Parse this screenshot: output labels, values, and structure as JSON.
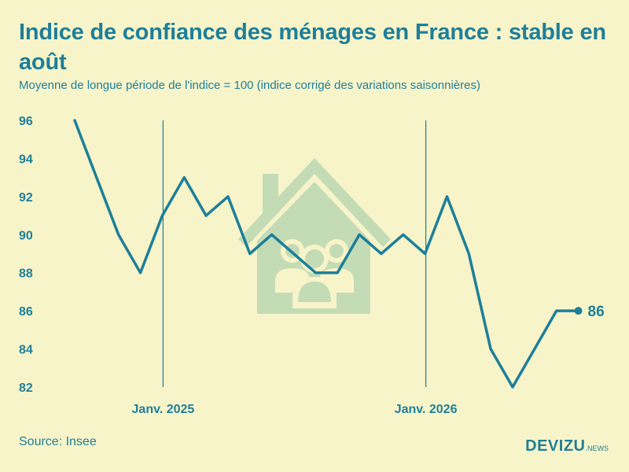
{
  "header": {
    "title": "Indice de confiance des ménages en France : stable en août",
    "subtitle": "Moyenne de longue période de l'indice = 100 (indice corrigé des variations saisonnières)"
  },
  "footer": {
    "source": "Source: Insee",
    "brand_main": "DEVIZU",
    "brand_sub": ".NEWS"
  },
  "colors": {
    "background": "#f8f4c9",
    "line": "#1d7f9a",
    "watermark": "#c4dcb6"
  },
  "watermark_icon": "house-with-family-icon",
  "chart_data": {
    "type": "line",
    "title": "Indice de confiance des ménages en France : stable en août",
    "subtitle": "Moyenne de longue période de l'indice = 100 (indice corrigé des variations saisonnières)",
    "ylim": [
      82,
      96
    ],
    "yticks": [
      "96",
      "94",
      "92",
      "90",
      "88",
      "86",
      "84",
      "82"
    ],
    "xticks": [
      {
        "label": "Janv. 2025",
        "index": 4
      },
      {
        "label": "Janv. 2026",
        "index": 16
      }
    ],
    "values": [
      96,
      93,
      90,
      88,
      91,
      93,
      91,
      92,
      89,
      90,
      89,
      88,
      88,
      90,
      89,
      90,
      89,
      92,
      89,
      84,
      82,
      84,
      86,
      86
    ],
    "end_label": "86",
    "grid": false
  }
}
